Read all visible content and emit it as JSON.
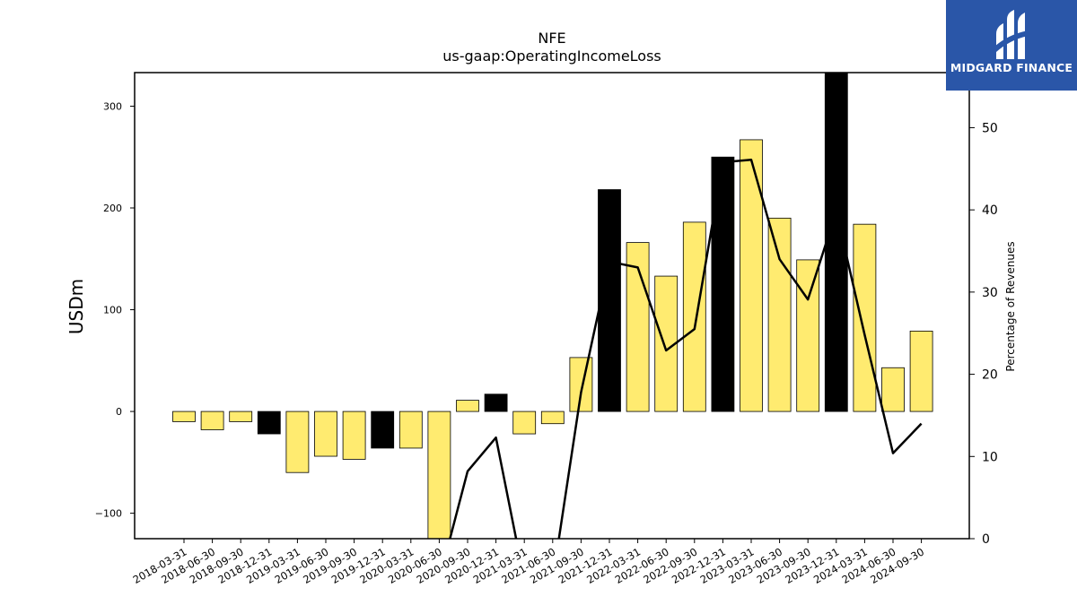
{
  "chart_data": {
    "type": "bar",
    "title": "NFE",
    "subtitle": "us-gaap:OperatingIncomeLoss",
    "ylabel": "USDm",
    "y2label": "Percentage of Revenues",
    "ylim": [
      -125,
      333
    ],
    "y2lim": [
      0,
      56.7
    ],
    "yticks": [
      -100,
      0,
      100,
      200,
      300
    ],
    "y2ticks": [
      0,
      10,
      20,
      30,
      40,
      50
    ],
    "colors": {
      "bar": "#ffeb70",
      "bar_highlight": "#000000",
      "line": "#000000"
    },
    "categories": [
      "2018-03-31",
      "2018-06-30",
      "2018-09-30",
      "2018-12-31",
      "2019-03-31",
      "2019-06-30",
      "2019-09-30",
      "2019-12-31",
      "2020-03-31",
      "2020-06-30",
      "2020-09-30",
      "2020-12-31",
      "2021-03-31",
      "2021-06-30",
      "2021-09-30",
      "2021-12-31",
      "2022-03-31",
      "2022-06-30",
      "2022-09-30",
      "2022-12-31",
      "2023-03-31",
      "2023-06-30",
      "2023-09-30",
      "2023-12-31",
      "2024-03-31",
      "2024-06-30",
      "2024-09-30"
    ],
    "values": [
      -10,
      -18,
      -10,
      -22,
      -60,
      -44,
      -47,
      -36,
      -36,
      -130,
      11,
      17,
      -22,
      -12,
      53,
      218,
      166,
      133,
      186,
      250,
      267,
      190,
      149,
      333,
      184,
      43,
      79
    ],
    "highlight": [
      false,
      false,
      false,
      true,
      false,
      false,
      false,
      true,
      false,
      false,
      false,
      true,
      false,
      false,
      false,
      true,
      false,
      false,
      false,
      true,
      false,
      false,
      false,
      true,
      false,
      false,
      false
    ],
    "series": [
      {
        "values": [
          null,
          null,
          null,
          null,
          null,
          null,
          null,
          null,
          null,
          -5,
          8.2,
          12.3,
          -5,
          -5,
          17.8,
          33.7,
          33.0,
          22.9,
          25.5,
          45.8,
          46.1,
          34.0,
          29.1,
          39.8,
          24.8,
          10.4,
          14.0
        ]
      }
    ]
  },
  "logo": {
    "name": "MIDGARD FINANCE"
  }
}
